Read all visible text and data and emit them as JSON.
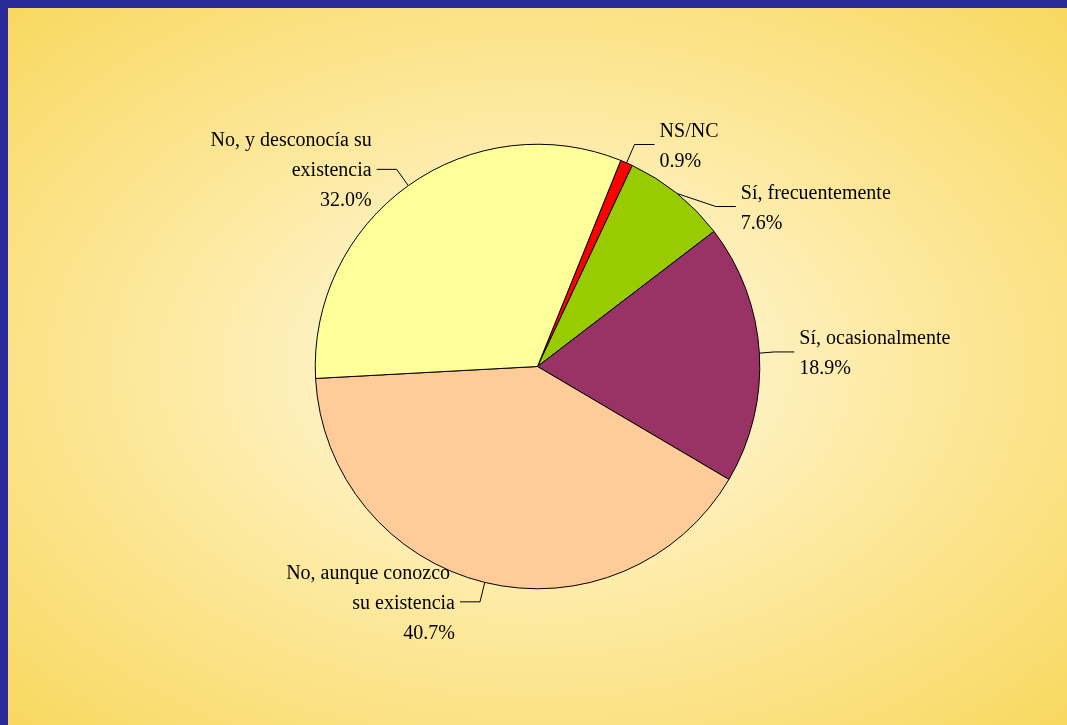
{
  "chart_data": {
    "type": "pie",
    "categories": [
      "NS/NC",
      "Sí, frecuentemente",
      "Sí, ocasionalmente",
      "No, aunque conozco su existencia",
      "No, y desconocía su existencia"
    ],
    "values": [
      0.9,
      7.6,
      18.9,
      40.7,
      32.0
    ],
    "value_labels": [
      "0.9%",
      "7.6%",
      "18.9%",
      "40.7%",
      "32.0%"
    ],
    "colors": [
      "#ff0000",
      "#99cc00",
      "#993366",
      "#ffcc99",
      "#ffff99"
    ],
    "legend": false
  }
}
